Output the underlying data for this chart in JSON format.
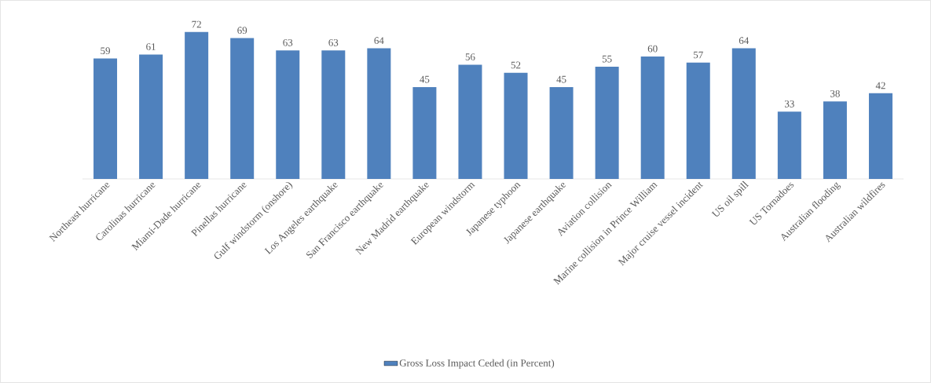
{
  "chart_data": {
    "type": "bar",
    "categories": [
      "Northeast hurricane",
      "Carolinas hurricane",
      "Miami-Dade hurricane",
      "Pinellas hurricane",
      "Gulf windstorm (onshore)",
      "Los Angeles earthquake",
      "San Francisco earthquake",
      "New Madrid earthquake",
      "European windstorm",
      "Japanese typhoon",
      "Japanese earthquake",
      "Aviation collision",
      "Marine collision in Prince William",
      "Major cruise vessel incident",
      "US oil spill",
      "US Tornadoes",
      "Australian flooding",
      "Australian wildfires"
    ],
    "series": [
      {
        "name": "Gross Loss Impact Ceded (in Percent)",
        "color": "#4f81bd",
        "values": [
          59,
          61,
          72,
          69,
          63,
          63,
          64,
          45,
          56,
          52,
          45,
          55,
          60,
          57,
          64,
          33,
          38,
          42
        ]
      }
    ],
    "data_labels": true,
    "legend": "bottom",
    "grid": false
  }
}
